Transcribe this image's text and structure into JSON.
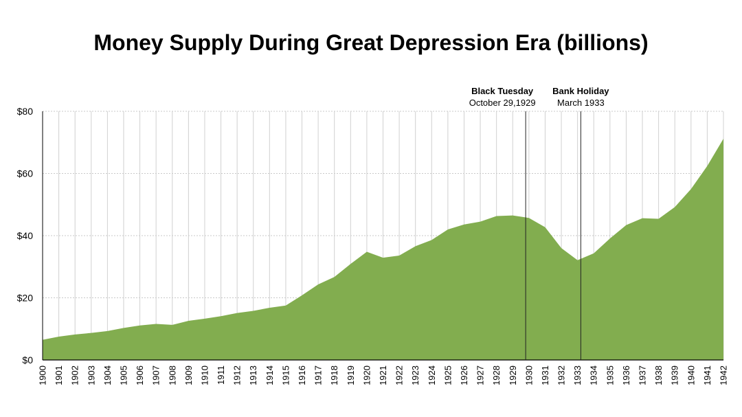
{
  "chart_data": {
    "type": "area",
    "title": "Money Supply During Great Depression Era (billions)",
    "xlabel": "",
    "ylabel": "",
    "ylim": [
      0,
      80
    ],
    "yticks": [
      0,
      20,
      40,
      60,
      80
    ],
    "ytick_labels": [
      "$0",
      "$20",
      "$40",
      "$60",
      "$80"
    ],
    "grid": true,
    "legend": "none",
    "x": [
      1900,
      1901,
      1902,
      1903,
      1904,
      1905,
      1906,
      1907,
      1908,
      1909,
      1910,
      1911,
      1912,
      1913,
      1914,
      1915,
      1916,
      1917,
      1918,
      1919,
      1920,
      1921,
      1922,
      1923,
      1924,
      1925,
      1926,
      1927,
      1928,
      1929,
      1930,
      1931,
      1932,
      1933,
      1934,
      1935,
      1936,
      1937,
      1938,
      1939,
      1940,
      1941,
      1942
    ],
    "values": [
      6.5,
      7.5,
      8.2,
      8.7,
      9.3,
      10.3,
      11.1,
      11.6,
      11.3,
      12.6,
      13.3,
      14.1,
      15.1,
      15.8,
      16.8,
      17.5,
      20.8,
      24.3,
      26.7,
      30.9,
      34.8,
      32.9,
      33.6,
      36.6,
      38.6,
      42.0,
      43.6,
      44.5,
      46.3,
      46.5,
      45.7,
      42.7,
      36.0,
      32.1,
      34.3,
      39.1,
      43.4,
      45.6,
      45.4,
      49.2,
      55.0,
      62.4,
      71.2
    ],
    "color": "#82ad4f",
    "annotations": [
      {
        "x": 1929.8,
        "title": "Black Tuesday",
        "subtitle": "October 29,1929"
      },
      {
        "x": 1933.2,
        "title": "Bank Holiday",
        "subtitle": "March 1933"
      }
    ]
  }
}
